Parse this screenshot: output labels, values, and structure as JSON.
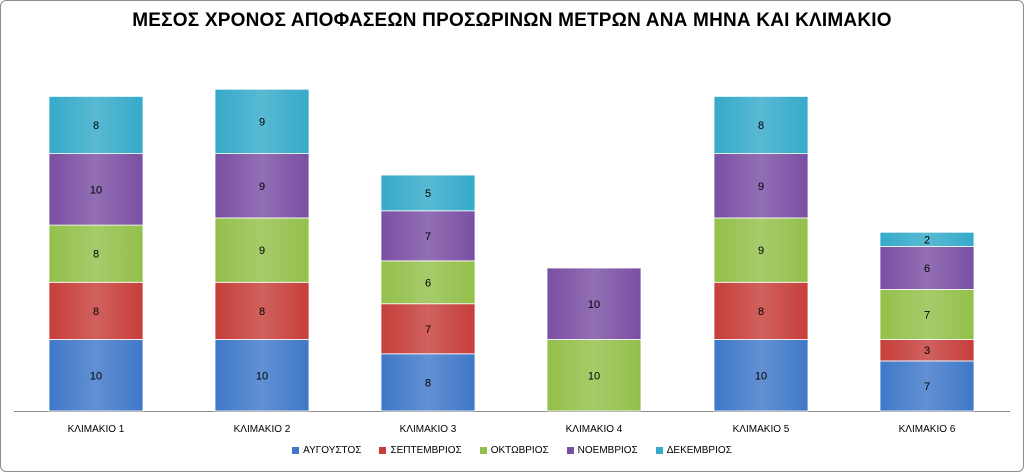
{
  "chart_data": {
    "type": "bar",
    "stacked": true,
    "title": "ΜΕΣΟΣ ΧΡΟΝΟΣ ΑΠΟΦΑΣΕΩΝ ΠΡΟΣΩΡΙΝΩΝ ΜΕΤΡΩΝ ΑΝΑ ΜΗΝΑ ΚΑΙ ΚΛΙΜΑΚΙΟ",
    "xlabel": "",
    "ylabel": "",
    "legend_position": "bottom",
    "grid": false,
    "categories": [
      "ΚΛΙΜΑΚΙΟ 1",
      "ΚΛΙΜΑΚΙΟ 2",
      "ΚΛΙΜΑΚΙΟ 3",
      "ΚΛΙΜΑΚΙΟ 4",
      "ΚΛΙΜΑΚΙΟ 5",
      "ΚΛΙΜΑΚΙΟ 6"
    ],
    "series": [
      {
        "name": "ΑΥΓΟΥΣΤΟΣ",
        "color": "#3f78c8",
        "values": [
          10,
          10,
          8,
          null,
          10,
          7
        ]
      },
      {
        "name": "ΣΕΠΤΕΜΒΡΙΟΣ",
        "color": "#c63e3a",
        "values": [
          8,
          8,
          7,
          null,
          8,
          3
        ]
      },
      {
        "name": "ΟΚΤΩΒΡΙΟΣ",
        "color": "#93c04a",
        "values": [
          8,
          9,
          6,
          10,
          9,
          7
        ]
      },
      {
        "name": "ΝΟΕΜΒΡΙΟΣ",
        "color": "#7a4fa3",
        "values": [
          10,
          9,
          7,
          10,
          9,
          6
        ]
      },
      {
        "name": "ΔΕΚΕΜΒΡΙΟΣ",
        "color": "#35aac9",
        "values": [
          8,
          9,
          5,
          null,
          8,
          2
        ]
      }
    ]
  }
}
